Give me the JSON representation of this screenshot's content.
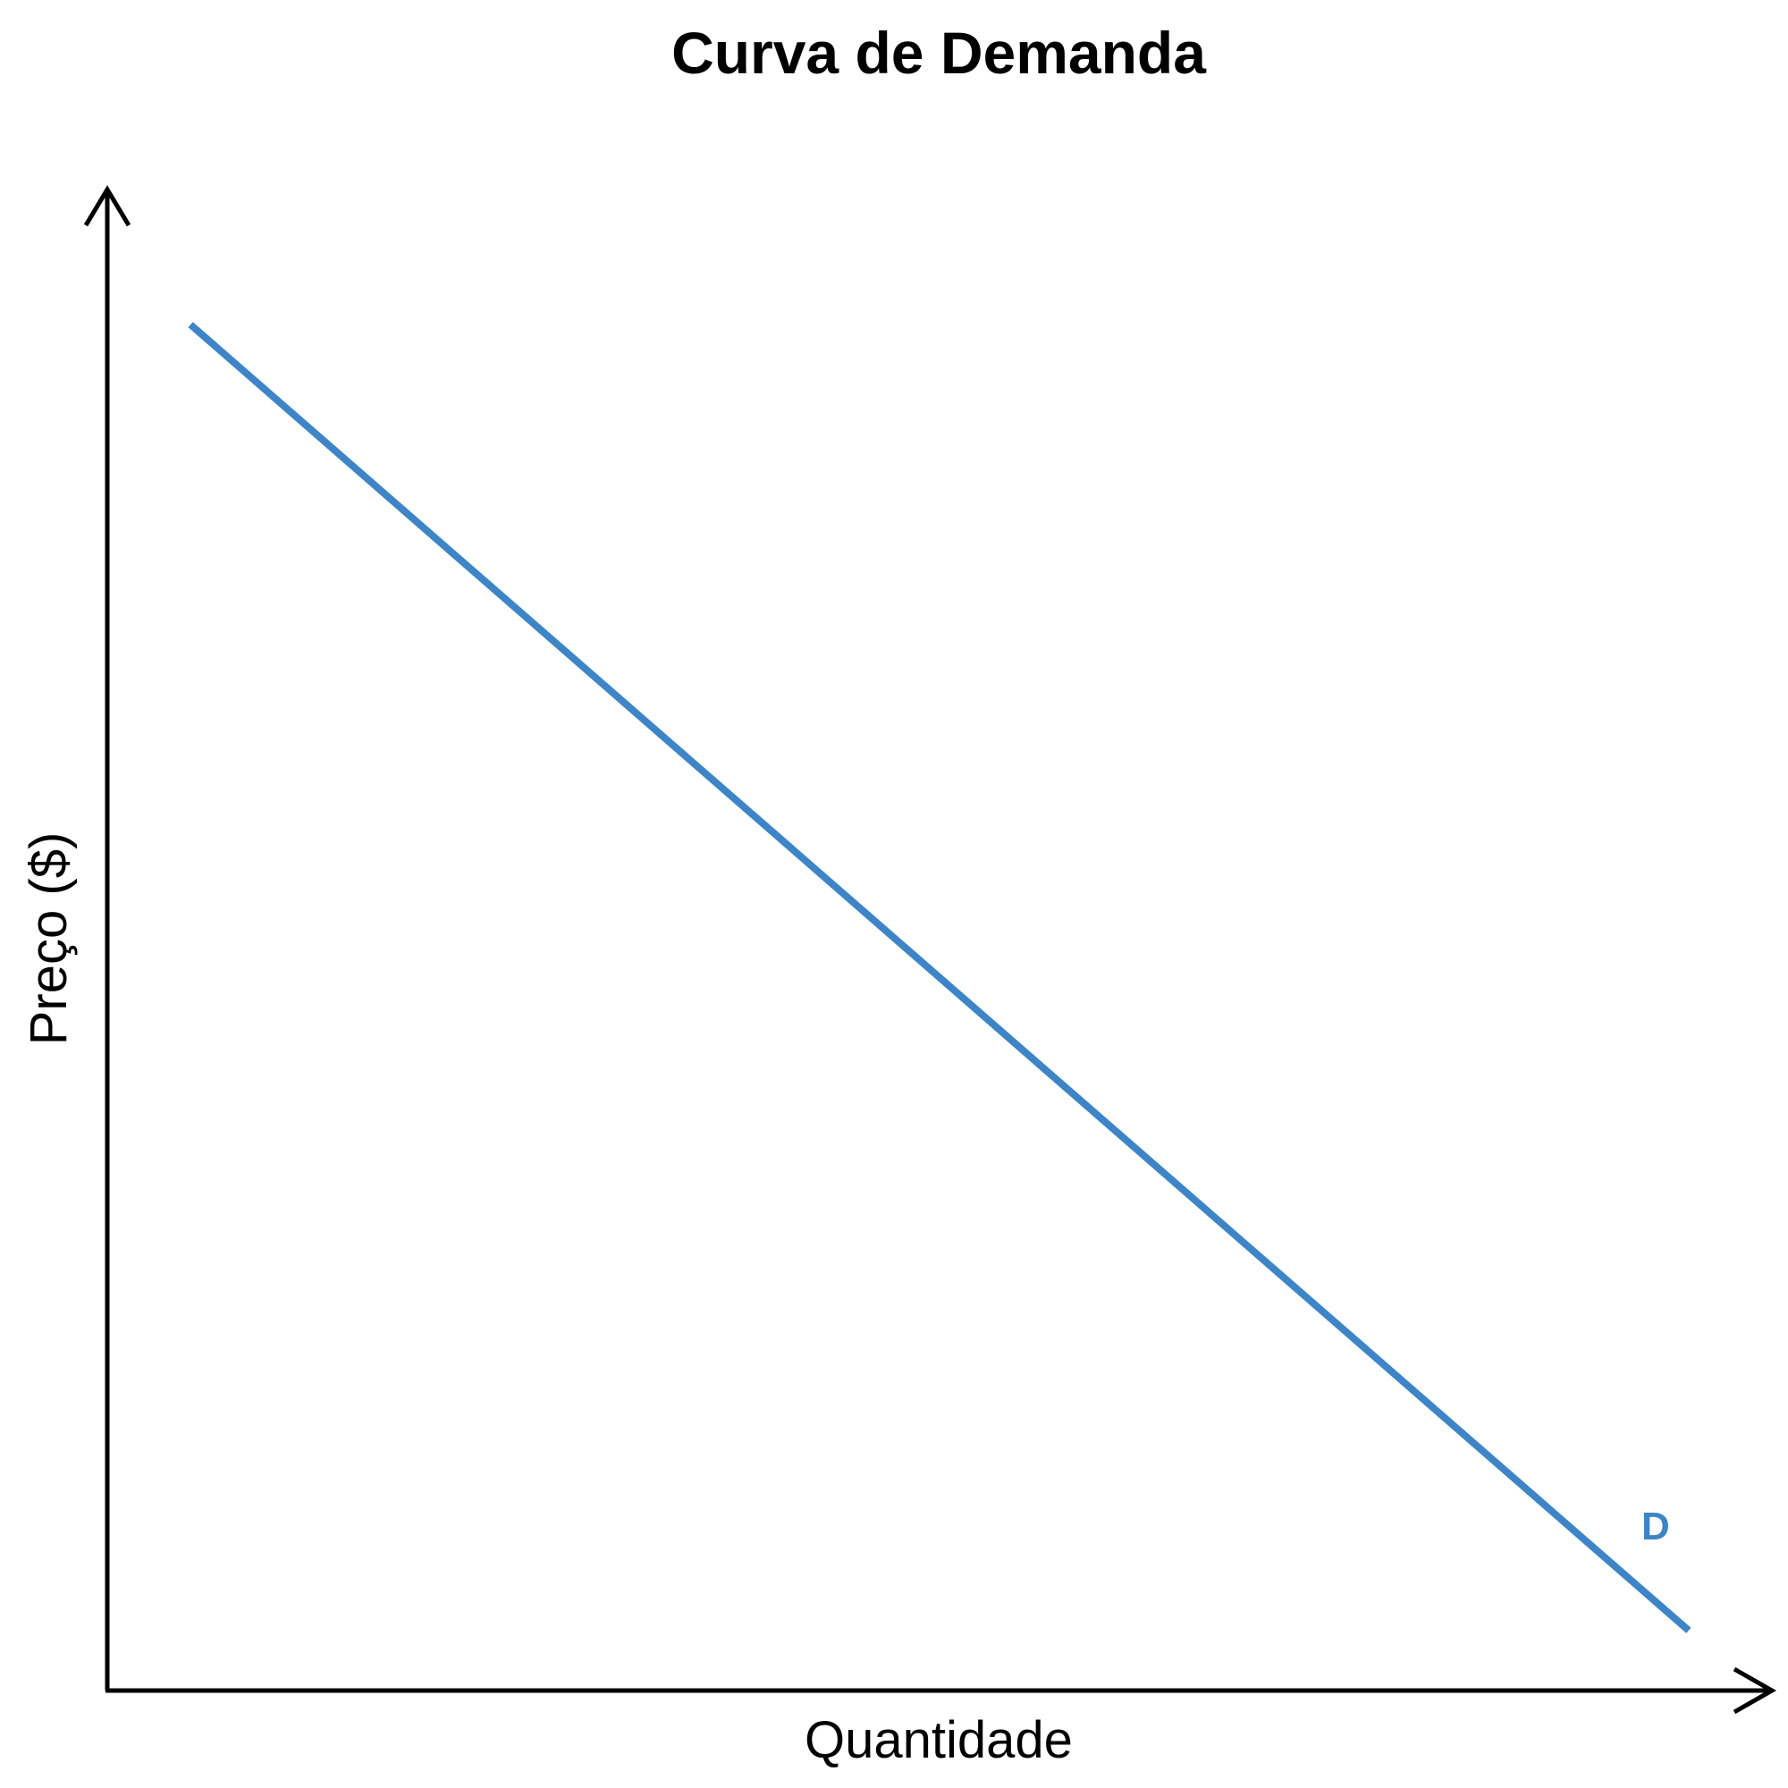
{
  "chart_data": {
    "type": "line",
    "title": "Curva de Demanda",
    "xlabel": "Quantidade",
    "ylabel": "Preço ($)",
    "xlim": [
      0,
      10
    ],
    "ylim": [
      0,
      10
    ],
    "grid": false,
    "ticks": false,
    "series": [
      {
        "name": "D",
        "color": "#3d85c6",
        "x": [
          0.5,
          9.5
        ],
        "y": [
          9.1,
          0.4
        ]
      }
    ]
  }
}
